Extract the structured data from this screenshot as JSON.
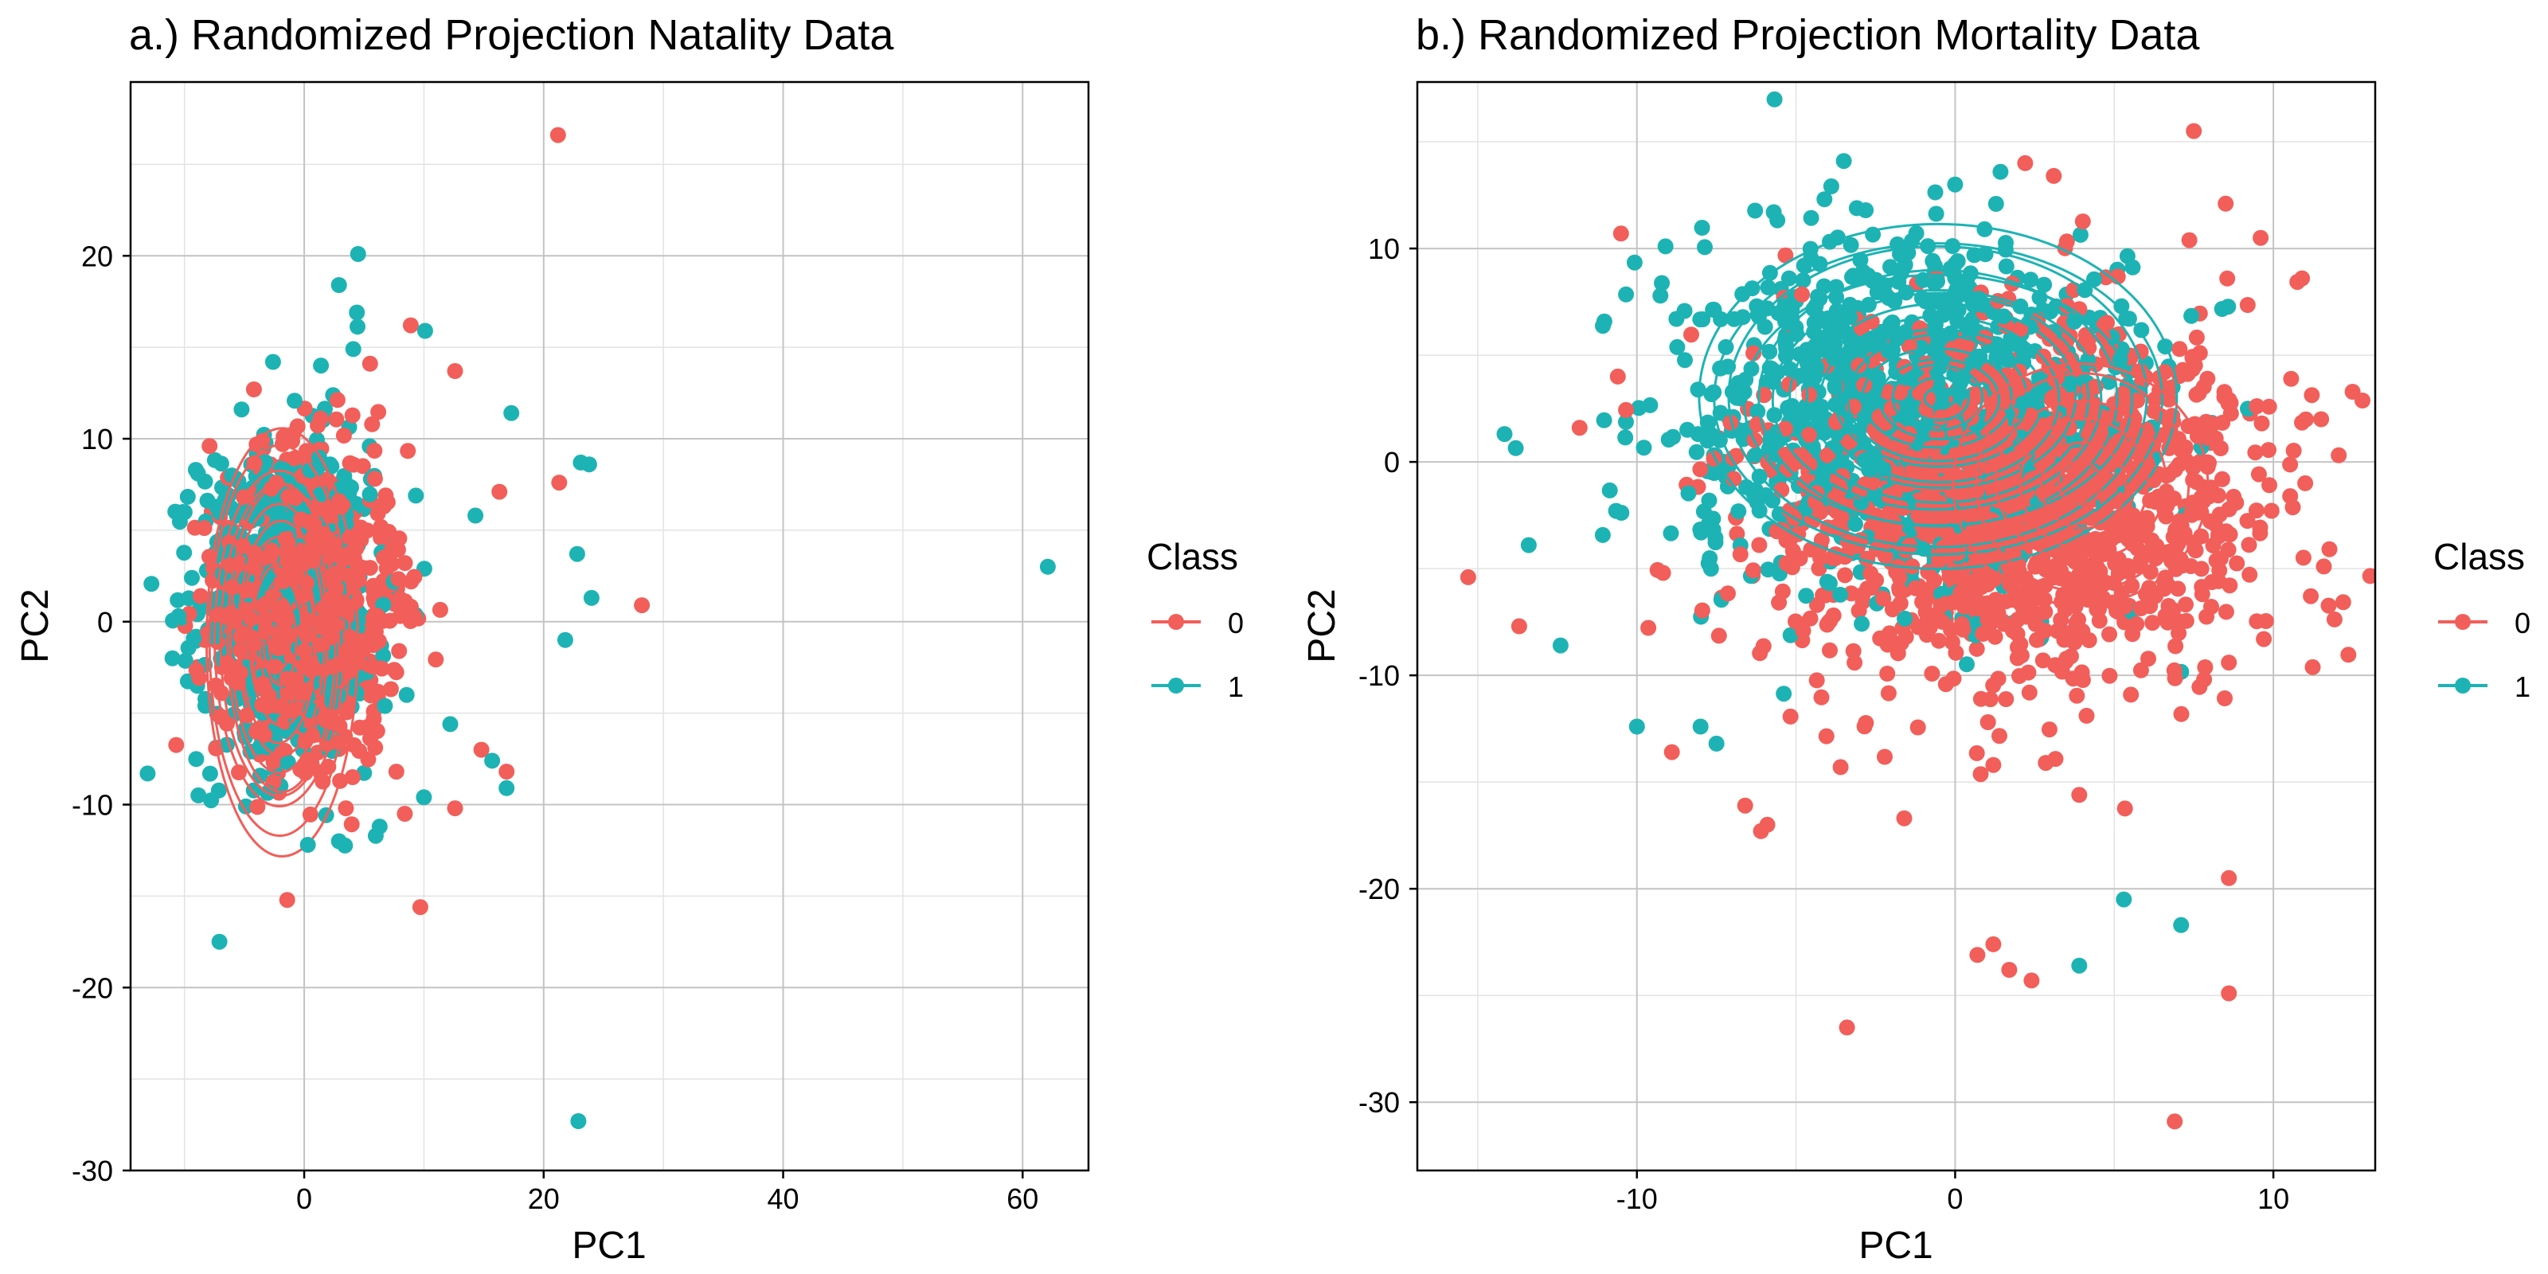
{
  "legend": {
    "title": "Class",
    "entries": [
      {
        "label": "0",
        "color": "#F25E59"
      },
      {
        "label": "1",
        "color": "#1DB3B4"
      }
    ]
  },
  "chart_data": [
    {
      "type": "scatter",
      "title": "a.) Randomized Projection Natality Data",
      "xlabel": "PC1",
      "ylabel": "PC2",
      "xlim": [
        -14.5,
        65.5
      ],
      "ylim": [
        -30,
        29.5
      ],
      "xticks": [
        0,
        20,
        40,
        60
      ],
      "yticks": [
        -30,
        -20,
        -10,
        0,
        10,
        20
      ],
      "grid": true,
      "legend_position": "right",
      "overlay": "density contours",
      "core": {
        "cx": -1,
        "cy": 1,
        "sx": 3.6,
        "sy": 4.2,
        "counts": [
          850,
          750
        ],
        "contour_center": [
          -2,
          -1
        ]
      },
      "series": [
        {
          "name": "0",
          "color": "#F25E59",
          "points": [
            [
              21.2,
              26.6
            ],
            [
              28.2,
              0.9
            ],
            [
              9.7,
              -15.6
            ],
            [
              12.6,
              -10.2
            ],
            [
              8.4,
              -10.5
            ],
            [
              14.8,
              -7.0
            ],
            [
              16.9,
              -8.2
            ],
            [
              16.3,
              7.1
            ],
            [
              21.3,
              7.6
            ],
            [
              8.9,
              16.2
            ],
            [
              12.6,
              13.7
            ],
            [
              5.5,
              14.1
            ],
            [
              -7.9,
              9.6
            ],
            [
              -4.2,
              12.7
            ],
            [
              7.7,
              -8.2
            ]
          ]
        },
        {
          "name": "1",
          "color": "#1DB3B4",
          "points": [
            [
              62.1,
              3.0
            ],
            [
              22.9,
              -27.3
            ],
            [
              4.5,
              20.1
            ],
            [
              2.9,
              18.4
            ],
            [
              4.4,
              16.9
            ],
            [
              10.1,
              15.9
            ],
            [
              4.1,
              14.9
            ],
            [
              1.4,
              14.0
            ],
            [
              -2.6,
              14.2
            ],
            [
              23.1,
              8.7
            ],
            [
              23.8,
              8.6
            ],
            [
              22.8,
              3.7
            ],
            [
              24.0,
              1.3
            ],
            [
              17.3,
              11.4
            ],
            [
              21.8,
              -1.0
            ],
            [
              16.9,
              -9.1
            ],
            [
              10.0,
              -9.6
            ],
            [
              0.3,
              -12.2
            ],
            [
              2.9,
              -12.0
            ],
            [
              6.3,
              -11.2
            ],
            [
              -11.0,
              -2.0
            ],
            [
              -10.5,
              0.3
            ],
            [
              15.7,
              -7.6
            ],
            [
              12.2,
              -5.6
            ],
            [
              14.3,
              5.8
            ]
          ]
        }
      ]
    },
    {
      "type": "scatter",
      "title": "b.) Randomized Projection Mortality Data",
      "xlabel": "PC1",
      "ylabel": "PC2",
      "xlim": [
        -16.9,
        13.2
      ],
      "ylim": [
        -33.2,
        17.8
      ],
      "xticks": [
        -10,
        0,
        10
      ],
      "yticks": [
        -30,
        -20,
        -10,
        0,
        10
      ],
      "grid": true,
      "legend_position": "right",
      "overlay": "density contours",
      "cores": [
        {
          "class": "0",
          "cx": 2.0,
          "cy": -1.8,
          "sx": 3.6,
          "sy": 4.0,
          "count": 1600
        },
        {
          "class": "1",
          "cx": -1.5,
          "cy": 2.5,
          "sx": 3.6,
          "sy": 4.0,
          "count": 1100
        }
      ],
      "contours": [
        {
          "class": "1",
          "center": [
            -0.5,
            3.0
          ]
        },
        {
          "class": "0",
          "center": [
            4.0,
            -1.0
          ]
        }
      ],
      "series": [
        {
          "name": "0",
          "color": "#F25E59",
          "points": [
            [
              7.5,
              15.5
            ],
            [
              2.2,
              14.0
            ],
            [
              3.1,
              13.4
            ],
            [
              -10.5,
              10.7
            ],
            [
              8.5,
              12.1
            ],
            [
              9.6,
              10.5
            ],
            [
              10.9,
              8.6
            ],
            [
              11.5,
              2.0
            ],
            [
              11.0,
              -1.0
            ],
            [
              9.7,
              -8.3
            ],
            [
              8.6,
              -9.4
            ],
            [
              -15.3,
              -5.4
            ],
            [
              -13.7,
              -7.7
            ],
            [
              -11.8,
              1.6
            ],
            [
              -10.6,
              4.0
            ],
            [
              -8.9,
              -13.6
            ],
            [
              -6.6,
              -16.1
            ],
            [
              -5.9,
              -17.0
            ],
            [
              -6.1,
              -17.3
            ],
            [
              -3.6,
              -14.3
            ],
            [
              -1.6,
              -16.7
            ],
            [
              1.2,
              -14.2
            ],
            [
              3.9,
              -15.6
            ],
            [
              -3.4,
              -26.5
            ],
            [
              0.7,
              -23.1
            ],
            [
              1.2,
              -22.6
            ],
            [
              1.7,
              -23.8
            ],
            [
              2.4,
              -24.3
            ],
            [
              8.6,
              -19.5
            ],
            [
              8.6,
              -24.9
            ],
            [
              6.9,
              -30.9
            ]
          ]
        },
        {
          "name": "1",
          "color": "#1DB3B4",
          "points": [
            [
              -3.5,
              14.1
            ],
            [
              0.0,
              13.0
            ],
            [
              -5.7,
              11.7
            ],
            [
              -9.1,
              10.1
            ],
            [
              -13.4,
              -3.9
            ],
            [
              -12.4,
              -8.6
            ],
            [
              -10.0,
              -12.4
            ],
            [
              -8.0,
              -12.4
            ],
            [
              -7.5,
              -13.2
            ],
            [
              5.3,
              -20.5
            ],
            [
              7.1,
              -21.7
            ],
            [
              3.9,
              -23.6
            ]
          ]
        }
      ]
    }
  ]
}
